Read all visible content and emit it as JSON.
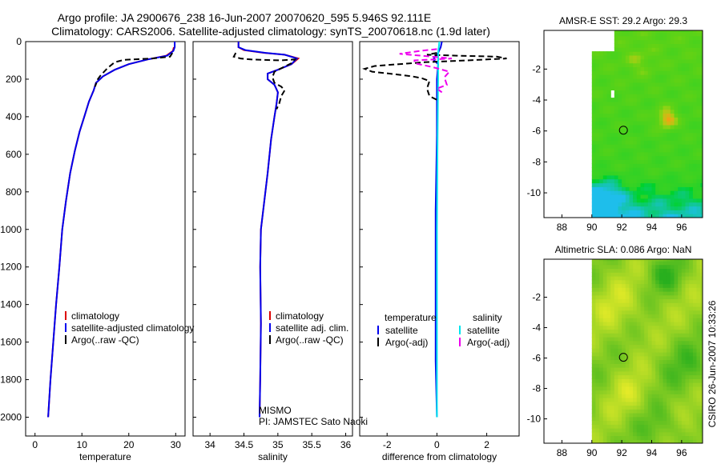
{
  "header": {
    "line1": "Argo profile: JA 2900676_238 16-Jun-2007 20070620_595 5.946S 92.111E",
    "line2": "Climatology: CARS2006. Satellite-adjusted climatology: synTS_20070618.nc (1.9d later)"
  },
  "side_label": "CSIRO 26-Jun-2007 10:33:26",
  "colors": {
    "climatology": "#dd0000",
    "satellite": "#0000ee",
    "argo": "#000000",
    "salinity_sat": "#00e5ee",
    "salinity_argo": "#ee00ee"
  },
  "chart_data": [
    {
      "type": "line",
      "xlabel": "temperature",
      "ylim": [
        2100,
        0
      ],
      "xlim": [
        -2,
        32
      ],
      "xticks": [
        0,
        10,
        20,
        30
      ],
      "yticks": [
        0,
        200,
        400,
        600,
        800,
        1000,
        1200,
        1400,
        1600,
        1800,
        2000
      ],
      "legend": [
        "climatology",
        "satellite-adjusted climatology",
        "Argo(..raw -QC)"
      ],
      "series": [
        {
          "name": "climatology",
          "style": "solid",
          "color": "#dd0000",
          "points": [
            [
              29.6,
              30
            ],
            [
              29.4,
              50
            ],
            [
              28,
              75
            ],
            [
              24,
              95
            ],
            [
              20,
              120
            ],
            [
              17,
              150
            ],
            [
              14.5,
              185
            ],
            [
              13,
              220
            ],
            [
              12.5,
              260
            ],
            [
              11.5,
              320
            ],
            [
              10.5,
              400
            ],
            [
              9.5,
              480
            ],
            [
              8.5,
              580
            ],
            [
              7.5,
              700
            ],
            [
              6.6,
              850
            ],
            [
              5.8,
              1000
            ],
            [
              5.2,
              1200
            ],
            [
              4.5,
              1400
            ],
            [
              3.9,
              1600
            ],
            [
              3.3,
              1800
            ],
            [
              2.8,
              2000
            ]
          ]
        },
        {
          "name": "satellite-adjusted climatology",
          "style": "solid",
          "color": "#0000ee",
          "points": [
            [
              29.8,
              0
            ],
            [
              29.8,
              30
            ],
            [
              29.5,
              50
            ],
            [
              28.2,
              75
            ],
            [
              24,
              95
            ],
            [
              20,
              120
            ],
            [
              17,
              150
            ],
            [
              14.5,
              185
            ],
            [
              13,
              220
            ],
            [
              12.5,
              260
            ],
            [
              11.5,
              320
            ],
            [
              10.5,
              400
            ],
            [
              9.5,
              480
            ],
            [
              8.5,
              580
            ],
            [
              7.5,
              700
            ],
            [
              6.6,
              850
            ],
            [
              5.8,
              1000
            ],
            [
              5.2,
              1200
            ],
            [
              4.5,
              1400
            ],
            [
              3.9,
              1600
            ],
            [
              3.3,
              1800
            ],
            [
              2.8,
              2000
            ]
          ]
        },
        {
          "name": "Argo(..raw -QC)",
          "style": "dashed",
          "color": "#000000",
          "points": [
            [
              29.3,
              60
            ],
            [
              28.8,
              80
            ],
            [
              25,
              90
            ],
            [
              19,
              97
            ],
            [
              17,
              110
            ],
            [
              15.5,
              140
            ],
            [
              14,
              180
            ],
            [
              13.4,
              200
            ],
            [
              12.8,
              240
            ]
          ]
        }
      ]
    },
    {
      "type": "line",
      "xlabel": "salinity",
      "ylim": [
        2100,
        0
      ],
      "xlim": [
        33.75,
        36.1
      ],
      "xticks": [
        34,
        34.5,
        35,
        35.5,
        36
      ],
      "yticks": [
        0,
        200,
        400,
        600,
        800,
        1000,
        1200,
        1400,
        1600,
        1800,
        2000
      ],
      "legend": [
        "climatology",
        "satellite adj. clim.",
        "Argo(..raw -QC)"
      ],
      "annotations": [
        "MISMO",
        "PI: JAMSTEC Sato Naoki"
      ],
      "series": [
        {
          "name": "climatology",
          "style": "solid",
          "color": "#dd0000",
          "points": [
            [
              34.42,
              0
            ],
            [
              34.42,
              30
            ],
            [
              34.5,
              45
            ],
            [
              34.8,
              60
            ],
            [
              35.1,
              70
            ],
            [
              35.3,
              90
            ],
            [
              35.2,
              120
            ],
            [
              35.0,
              150
            ],
            [
              34.85,
              170
            ],
            [
              34.85,
              200
            ],
            [
              34.95,
              230
            ],
            [
              35.0,
              270
            ],
            [
              34.98,
              330
            ],
            [
              34.95,
              400
            ],
            [
              34.9,
              520
            ],
            [
              34.85,
              700
            ],
            [
              34.8,
              850
            ],
            [
              34.75,
              1000
            ],
            [
              34.74,
              1200
            ],
            [
              34.75,
              1500
            ],
            [
              34.74,
              1800
            ],
            [
              34.73,
              2000
            ]
          ]
        },
        {
          "name": "satellite adj. clim.",
          "style": "solid",
          "color": "#0000ee",
          "points": [
            [
              34.42,
              0
            ],
            [
              34.42,
              30
            ],
            [
              34.52,
              45
            ],
            [
              34.82,
              60
            ],
            [
              35.1,
              70
            ],
            [
              35.28,
              90
            ],
            [
              35.2,
              120
            ],
            [
              35.0,
              150
            ],
            [
              34.85,
              170
            ],
            [
              34.85,
              200
            ],
            [
              34.95,
              230
            ],
            [
              35.0,
              270
            ],
            [
              34.98,
              330
            ],
            [
              34.95,
              400
            ],
            [
              34.9,
              520
            ],
            [
              34.85,
              700
            ],
            [
              34.8,
              850
            ],
            [
              34.75,
              1000
            ],
            [
              34.74,
              1200
            ],
            [
              34.75,
              1500
            ],
            [
              34.74,
              1800
            ],
            [
              34.73,
              2000
            ]
          ]
        },
        {
          "name": "Argo(..raw -QC)",
          "style": "dashed",
          "color": "#000000",
          "points": [
            [
              34.38,
              60
            ],
            [
              34.35,
              80
            ],
            [
              34.45,
              90
            ],
            [
              34.6,
              95
            ],
            [
              34.85,
              98
            ],
            [
              35.05,
              100
            ],
            [
              35.25,
              95
            ],
            [
              35.2,
              115
            ],
            [
              34.95,
              160
            ],
            [
              34.92,
              190
            ],
            [
              34.95,
              220
            ],
            [
              35.05,
              240
            ],
            [
              35.1,
              260
            ],
            [
              35.05,
              290
            ],
            [
              35.02,
              330
            ],
            [
              34.98,
              360
            ]
          ]
        }
      ]
    },
    {
      "type": "line",
      "xlabel": "difference from climatology",
      "ylim": [
        2100,
        0
      ],
      "xlim": [
        -3.1,
        3.3
      ],
      "xticks": [
        -2,
        0,
        2
      ],
      "yticks": [
        0,
        200,
        400,
        600,
        800,
        1000,
        1200,
        1400,
        1600,
        1800,
        2000
      ],
      "legend_groups": [
        {
          "title": "temperature",
          "items": [
            "satellite",
            "Argo(-adj)"
          ]
        },
        {
          "title": "salinity",
          "items": [
            "satellite",
            "Argo(-adj)"
          ]
        }
      ],
      "series": [
        {
          "name": "temperature satellite",
          "style": "solid",
          "color": "#0000ee",
          "points": [
            [
              0.2,
              0
            ],
            [
              0.15,
              30
            ],
            [
              0.05,
              60
            ],
            [
              -0.15,
              95
            ],
            [
              0.05,
              120
            ],
            [
              0.0,
              200
            ],
            [
              0.0,
              500
            ],
            [
              -0.05,
              900
            ],
            [
              -0.05,
              1300
            ],
            [
              -0.05,
              1700
            ],
            [
              0.0,
              2000
            ]
          ]
        },
        {
          "name": "temperature Argo(-adj)",
          "style": "dashed",
          "color": "#000000",
          "points": [
            [
              0.0,
              60
            ],
            [
              -0.4,
              70
            ],
            [
              0.8,
              75
            ],
            [
              2.4,
              80
            ],
            [
              2.8,
              90
            ],
            [
              1.2,
              100
            ],
            [
              -0.5,
              110
            ],
            [
              -2.5,
              130
            ],
            [
              -2.9,
              145
            ],
            [
              -2.6,
              160
            ],
            [
              -1.6,
              175
            ],
            [
              -1.0,
              185
            ],
            [
              -0.6,
              195
            ],
            [
              -0.3,
              210
            ],
            [
              -0.4,
              250
            ],
            [
              -0.3,
              290
            ],
            [
              0.0,
              310
            ]
          ]
        },
        {
          "name": "salinity satellite",
          "style": "solid",
          "color": "#00e5ee",
          "points": [
            [
              0.1,
              0
            ],
            [
              0.05,
              60
            ],
            [
              0.05,
              100
            ],
            [
              0.05,
              200
            ],
            [
              0.02,
              600
            ],
            [
              0.0,
              1000
            ],
            [
              0.0,
              1500
            ],
            [
              0.0,
              2000
            ]
          ]
        },
        {
          "name": "salinity Argo(-adj)",
          "style": "dashed",
          "color": "#ee00ee",
          "points": [
            [
              0.0,
              40
            ],
            [
              -0.7,
              50
            ],
            [
              -1.5,
              65
            ],
            [
              -0.2,
              80
            ],
            [
              0.6,
              90
            ],
            [
              -0.9,
              100
            ],
            [
              -0.9,
              115
            ],
            [
              -0.2,
              135
            ],
            [
              0.5,
              160
            ],
            [
              0.3,
              190
            ],
            [
              0.4,
              230
            ],
            [
              0.0,
              250
            ],
            [
              0.2,
              270
            ]
          ]
        }
      ]
    }
  ],
  "maps": [
    {
      "title": "AMSR-E SST: 29.2 Argo: 29.3",
      "xticks": [
        88,
        90,
        92,
        94,
        96
      ],
      "yticks": [
        -2,
        -4,
        -6,
        -8,
        -10
      ],
      "xlim": [
        86.8,
        97.4
      ],
      "ylim": [
        -11.6,
        0.5
      ],
      "data_lon_min": 90,
      "marker": {
        "lon": 92.11,
        "lat": -5.95
      },
      "field": "sst"
    },
    {
      "title": "Altimetric SLA: 0.086 Argo: NaN",
      "xticks": [
        88,
        90,
        92,
        94,
        96
      ],
      "yticks": [
        -2,
        -4,
        -6,
        -8,
        -10
      ],
      "xlim": [
        86.8,
        97.4
      ],
      "ylim": [
        -11.6,
        0.5
      ],
      "data_lon_min": 90,
      "marker": {
        "lon": 92.11,
        "lat": -5.95
      },
      "field": "sla"
    }
  ]
}
